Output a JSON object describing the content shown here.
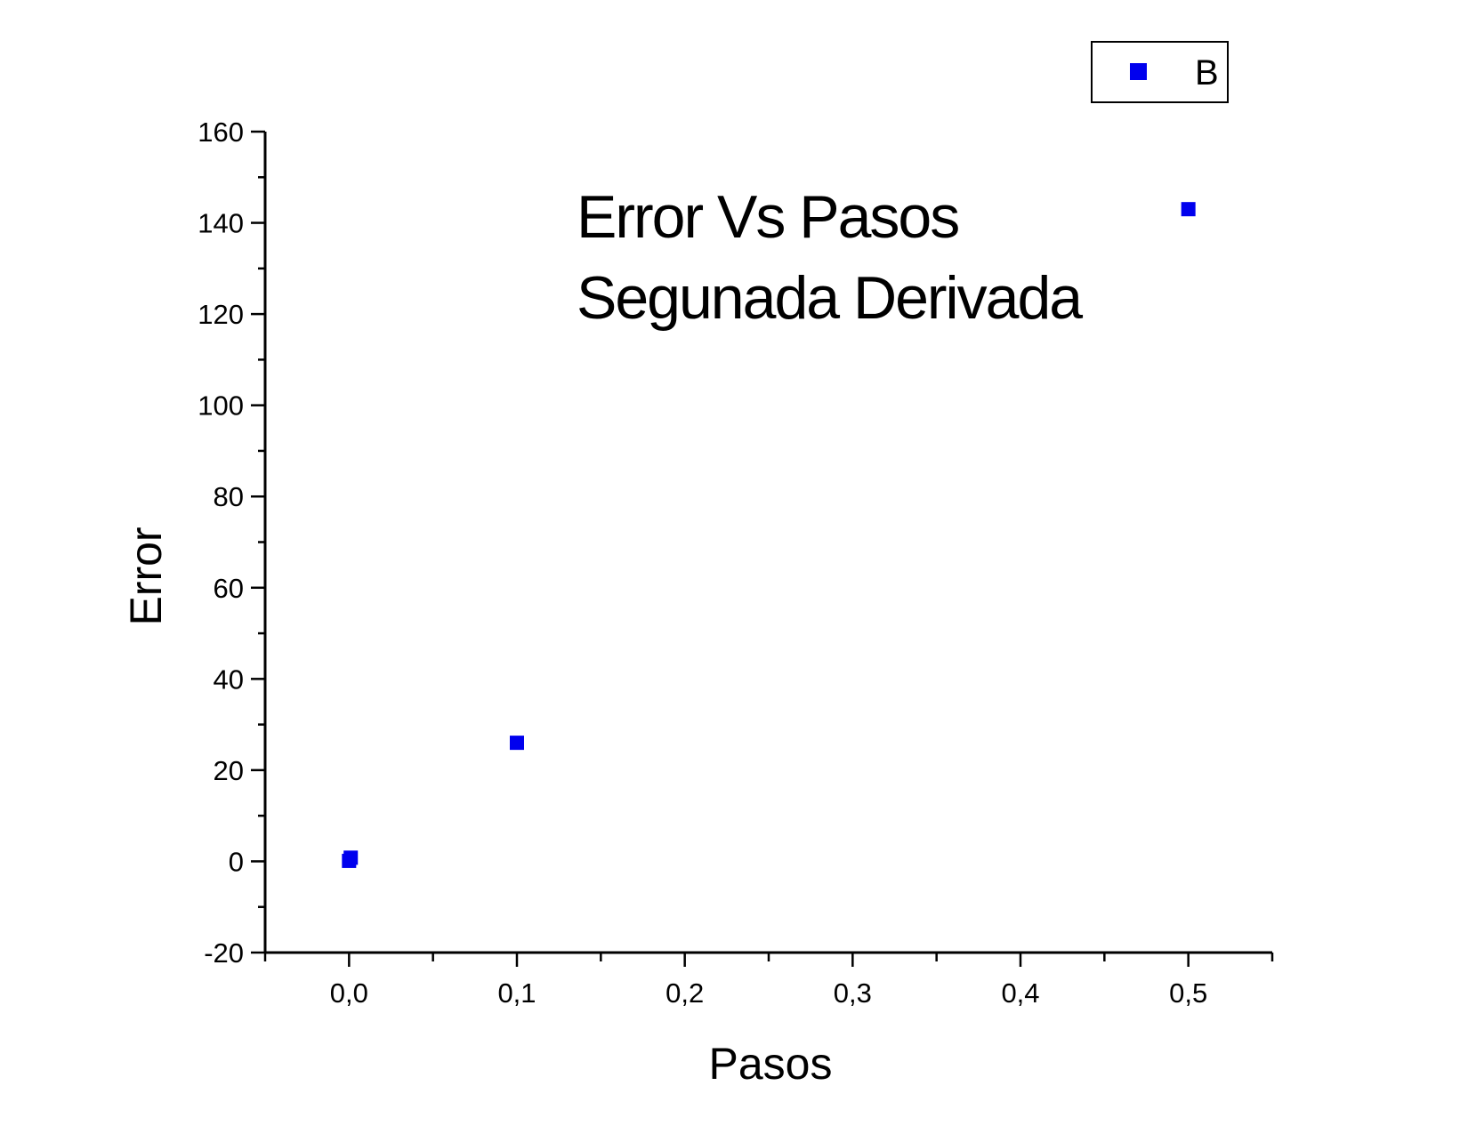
{
  "chart_data": {
    "type": "scatter",
    "title": "",
    "annotation_lines": [
      "Error Vs Pasos",
      "Segunada Derivada"
    ],
    "xlabel": "Pasos",
    "ylabel": "Error",
    "xlim": [
      -0.05,
      0.55
    ],
    "ylim": [
      -20,
      160
    ],
    "x_ticks": [
      "0,0",
      "0,1",
      "0,2",
      "0,3",
      "0,4",
      "0,5"
    ],
    "y_ticks": [
      "-20",
      "0",
      "20",
      "40",
      "60",
      "80",
      "100",
      "120",
      "140",
      "160"
    ],
    "grid": false,
    "legend_position": "top-right",
    "series": [
      {
        "name": "B",
        "color": "#0000ee",
        "marker": "square",
        "points": [
          {
            "x": 0.0,
            "y": 0.1
          },
          {
            "x": 0.001,
            "y": 0.8
          },
          {
            "x": 0.1,
            "y": 26
          },
          {
            "x": 0.5,
            "y": 143
          }
        ]
      }
    ]
  }
}
